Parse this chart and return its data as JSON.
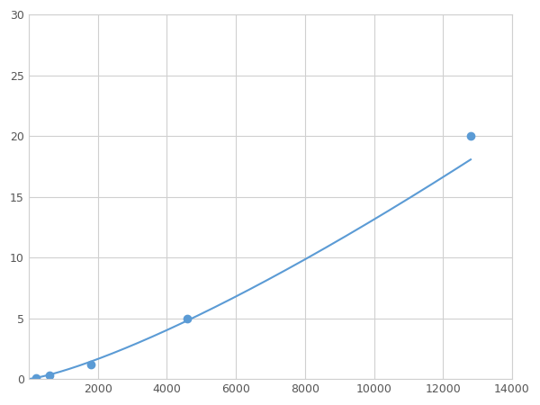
{
  "x": [
    200,
    600,
    1800,
    4600,
    12800
  ],
  "y": [
    0.1,
    0.3,
    1.2,
    5.0,
    20.0
  ],
  "line_color": "#5b9bd5",
  "marker_color": "#5b9bd5",
  "marker_size": 6,
  "line_width": 1.5,
  "xlim": [
    0,
    14000
  ],
  "ylim": [
    0,
    30
  ],
  "xticks": [
    0,
    2000,
    4000,
    6000,
    8000,
    10000,
    12000,
    14000
  ],
  "yticks": [
    0,
    5,
    10,
    15,
    20,
    25,
    30
  ],
  "grid_color": "#d0d0d0",
  "bg_color": "#ffffff",
  "figsize": [
    6.0,
    4.5
  ],
  "dpi": 100
}
